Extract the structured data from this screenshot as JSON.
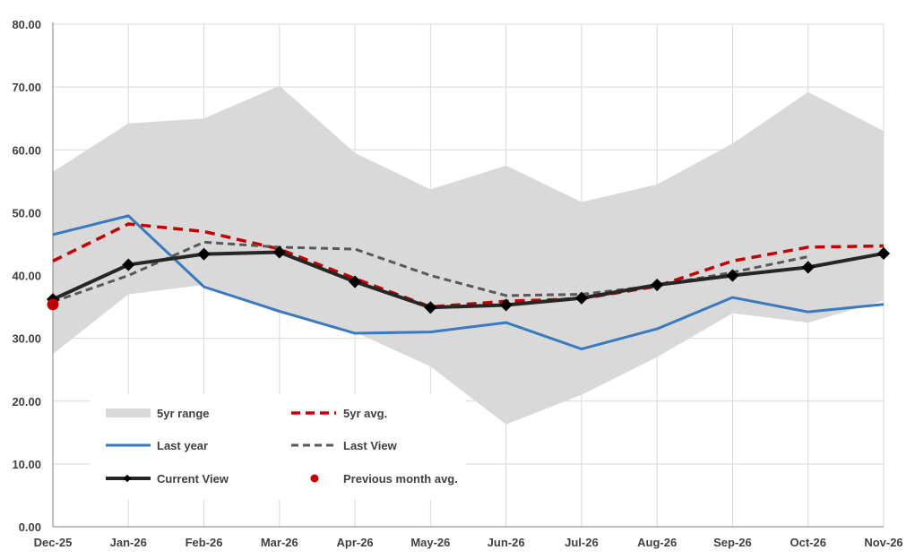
{
  "chart_data": {
    "type": "line",
    "title": "",
    "xlabel": "",
    "ylabel": "",
    "ylim": [
      0,
      80
    ],
    "ytick_step": 10,
    "ytick_labels": [
      "0.00",
      "10.00",
      "20.00",
      "30.00",
      "40.00",
      "50.00",
      "60.00",
      "70.00",
      "80.00"
    ],
    "categories": [
      "Dec-25",
      "Jan-26",
      "Feb-26",
      "Mar-26",
      "Apr-26",
      "May-26",
      "Jun-26",
      "Jul-26",
      "Aug-26",
      "Sep-26",
      "Oct-26",
      "Nov-26"
    ],
    "grid": true,
    "legend_position": "bottom-left",
    "range": {
      "name": "5yr range",
      "color": "#d9d9d9",
      "low": [
        27.5,
        37.0,
        38.5,
        34.0,
        31.0,
        25.5,
        16.3,
        21.0,
        27.0,
        34.0,
        32.5,
        36.0
      ],
      "high": [
        56.5,
        64.2,
        65.0,
        70.2,
        59.5,
        53.7,
        57.5,
        51.7,
        54.5,
        61.0,
        69.2,
        63.0
      ]
    },
    "series": [
      {
        "name": "5yr avg.",
        "color": "#c00000",
        "style": "dashed-thick",
        "values": [
          42.3,
          48.2,
          47.0,
          44.2,
          39.5,
          35.0,
          35.9,
          36.3,
          38.3,
          42.3,
          44.5,
          44.7
        ]
      },
      {
        "name": "Last year",
        "color": "#3a7abf",
        "style": "solid",
        "values": [
          46.5,
          49.5,
          38.2,
          34.3,
          30.8,
          31.0,
          32.5,
          28.3,
          31.5,
          36.5,
          34.2,
          35.4
        ]
      },
      {
        "name": "Last View",
        "color": "#595959",
        "style": "dashed",
        "values": [
          35.8,
          40.0,
          45.3,
          44.5,
          44.2,
          40.0,
          36.8,
          37.0,
          38.4,
          40.5,
          43.0,
          null
        ]
      },
      {
        "name": "Current View",
        "color": "#262626",
        "style": "solid-thick-markers",
        "values": [
          36.2,
          41.7,
          43.4,
          43.7,
          39.0,
          34.9,
          35.3,
          36.4,
          38.5,
          40.0,
          41.3,
          43.5
        ]
      }
    ],
    "points": [
      {
        "name": "Previous month avg.",
        "color": "#c00000",
        "category": "Dec-25",
        "value": 35.4
      }
    ]
  }
}
